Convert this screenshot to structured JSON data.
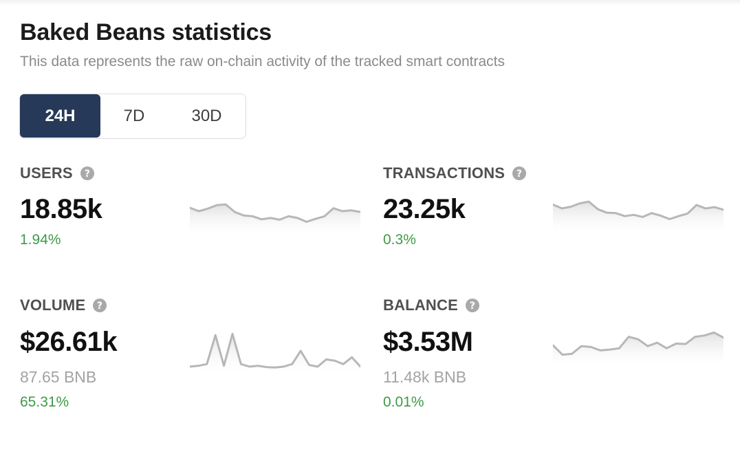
{
  "page": {
    "title": "Baked Beans statistics",
    "subtitle": "This data represents the raw on-chain activity of the tracked smart contracts"
  },
  "timeframes": [
    {
      "label": "24H",
      "active": true
    },
    {
      "label": "7D",
      "active": false
    },
    {
      "label": "30D",
      "active": false
    }
  ],
  "colors": {
    "active_tab": "#273958",
    "positive_change": "#3f9a46",
    "sparkline": "#b7b7b7"
  },
  "stats": {
    "users": {
      "label": "USERS",
      "value": "18.85k",
      "change": "1.94%",
      "icon": "question-circle-icon",
      "sparkline": [
        58,
        50,
        56,
        64,
        66,
        48,
        40,
        38,
        31,
        34,
        30,
        38,
        34,
        25,
        32,
        38,
        57,
        50,
        52,
        48
      ]
    },
    "transactions": {
      "label": "TRANSACTIONS",
      "value": "23.25k",
      "change": "0.3%",
      "icon": "question-circle-icon",
      "sparkline": [
        59,
        50,
        54,
        62,
        66,
        48,
        40,
        39,
        32,
        35,
        30,
        39,
        33,
        25,
        32,
        38,
        58,
        50,
        53,
        47
      ]
    },
    "volume": {
      "label": "VOLUME",
      "value": "$26.61k",
      "secondary": "87.65 BNB",
      "change": "65.31%",
      "icon": "question-circle-icon",
      "sparkline": [
        8,
        10,
        14,
        82,
        10,
        85,
        14,
        8,
        10,
        7,
        6,
        8,
        14,
        45,
        12,
        8,
        25,
        22,
        14,
        30,
        8
      ]
    },
    "balance": {
      "label": "BALANCE",
      "value": "$3.53M",
      "secondary": "11.48k BNB",
      "change": "0.01%",
      "icon": "question-circle-icon",
      "sparkline": [
        42,
        20,
        22,
        40,
        38,
        30,
        32,
        35,
        62,
        56,
        40,
        48,
        35,
        46,
        45,
        62,
        65,
        72,
        60
      ]
    }
  }
}
